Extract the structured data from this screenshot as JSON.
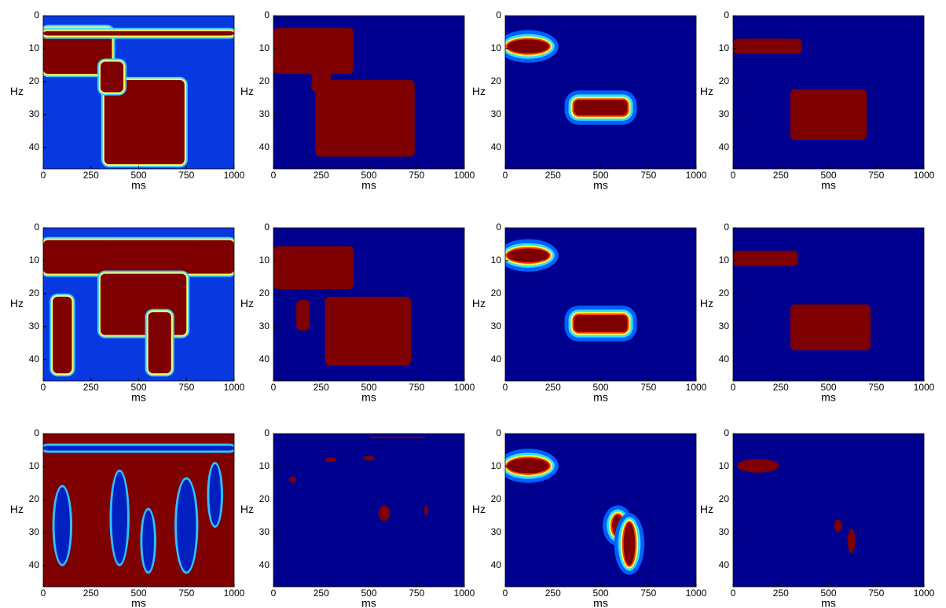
{
  "chart_data": [
    {
      "type": "heatmap",
      "xlabel": "ms",
      "ylabel": "Hz",
      "xlim": [
        0,
        1000
      ],
      "xticks": [
        0,
        250,
        500,
        750,
        1000
      ],
      "ylim": [
        0,
        46.5
      ],
      "yticks": [
        0,
        10,
        20,
        30,
        40
      ]
    },
    {
      "type": "heatmap",
      "xlabel": "ms",
      "ylabel": "Hz",
      "xlim": [
        0,
        1000
      ],
      "xticks": [
        0,
        250,
        500,
        750,
        1000
      ],
      "ylim": [
        0,
        46.5
      ],
      "yticks": [
        0,
        10,
        20,
        30,
        40
      ]
    },
    {
      "type": "heatmap",
      "xlabel": "ms",
      "ylabel": "Hz",
      "xlim": [
        0,
        1000
      ],
      "xticks": [
        0,
        250,
        500,
        750,
        1000
      ],
      "ylim": [
        0,
        46.5
      ],
      "yticks": [
        0,
        10,
        20,
        30,
        40
      ]
    },
    {
      "type": "heatmap",
      "xlabel": "ms",
      "ylabel": "Hz",
      "xlim": [
        0,
        1000
      ],
      "xticks": [
        0,
        250,
        500,
        750,
        1000
      ],
      "ylim": [
        0,
        46.5
      ],
      "yticks": [
        0,
        10,
        20,
        30,
        40
      ]
    },
    {
      "type": "heatmap",
      "xlabel": "ms",
      "ylabel": "Hz",
      "xlim": [
        0,
        1000
      ],
      "xticks": [
        0,
        250,
        500,
        750,
        1000
      ],
      "ylim": [
        0,
        46.5
      ],
      "yticks": [
        0,
        10,
        20,
        30,
        40
      ]
    },
    {
      "type": "heatmap",
      "xlabel": "ms",
      "ylabel": "Hz",
      "xlim": [
        0,
        1000
      ],
      "xticks": [
        0,
        250,
        500,
        750,
        1000
      ],
      "ylim": [
        0,
        46.5
      ],
      "yticks": [
        0,
        10,
        20,
        30,
        40
      ]
    },
    {
      "type": "heatmap",
      "xlabel": "ms",
      "ylabel": "Hz",
      "xlim": [
        0,
        1000
      ],
      "xticks": [
        0,
        250,
        500,
        750,
        1000
      ],
      "ylim": [
        0,
        46.5
      ],
      "yticks": [
        0,
        10,
        20,
        30,
        40
      ]
    },
    {
      "type": "heatmap",
      "xlabel": "ms",
      "ylabel": "Hz",
      "xlim": [
        0,
        1000
      ],
      "xticks": [
        0,
        250,
        500,
        750,
        1000
      ],
      "ylim": [
        0,
        46.5
      ],
      "yticks": [
        0,
        10,
        20,
        30,
        40
      ]
    },
    {
      "type": "heatmap",
      "xlabel": "ms",
      "ylabel": "Hz",
      "xlim": [
        0,
        1000
      ],
      "xticks": [
        0,
        250,
        500,
        750,
        1000
      ],
      "ylim": [
        0,
        46.5
      ],
      "yticks": [
        0,
        10,
        20,
        30,
        40
      ]
    },
    {
      "type": "heatmap",
      "xlabel": "ms",
      "ylabel": "Hz",
      "xlim": [
        0,
        1000
      ],
      "xticks": [
        0,
        250,
        500,
        750,
        1000
      ],
      "ylim": [
        0,
        46.5
      ],
      "yticks": [
        0,
        10,
        20,
        30,
        40
      ]
    },
    {
      "type": "heatmap",
      "xlabel": "ms",
      "ylabel": "Hz",
      "xlim": [
        0,
        1000
      ],
      "xticks": [
        0,
        250,
        500,
        750,
        1000
      ],
      "ylim": [
        0,
        46.5
      ],
      "yticks": [
        0,
        10,
        20,
        30,
        40
      ]
    },
    {
      "type": "heatmap",
      "xlabel": "ms",
      "ylabel": "Hz",
      "xlim": [
        0,
        1000
      ],
      "xticks": [
        0,
        250,
        500,
        750,
        1000
      ],
      "ylim": [
        0,
        46.5
      ],
      "yticks": [
        0,
        10,
        20,
        30,
        40
      ]
    }
  ]
}
